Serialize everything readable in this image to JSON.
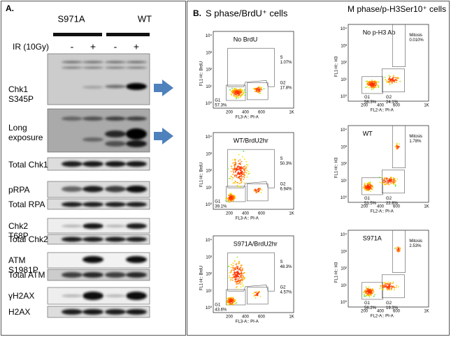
{
  "panel_a": {
    "label": "A.",
    "genotypes": [
      "S971A",
      "WT"
    ],
    "treatment": "IR (10Gy)",
    "lanes": [
      "-",
      "+",
      "-",
      "+"
    ],
    "blots": [
      "Chk1 S345P",
      "Long exposure",
      "Total Chk1",
      "pRPA",
      "Total RPA",
      "Chk2 T68P",
      "Total Chk2",
      "ATM S1981P",
      "Total ATM",
      "γH2AX",
      "H2AX"
    ]
  },
  "panel_b": {
    "label": "B.",
    "y_ticks": [
      "10⁰",
      "10¹",
      "10²",
      "10³",
      "10⁴"
    ],
    "x_ticks": [
      "200",
      "400",
      "600",
      "1K"
    ],
    "columns": [
      {
        "title": "S phase/BrdU⁺ cells",
        "y_axis": "FL1-H:: BrdU",
        "x_axis": "FL3-A:: PI-A",
        "plots": [
          {
            "label": "No BrdU",
            "gates": [
              {
                "name": "S",
                "value": "1.07%"
              },
              {
                "name": "G2",
                "value": "17.8%"
              },
              {
                "name": "G1",
                "value": "57.3%"
              }
            ]
          },
          {
            "label": "WT/BrdU2hr",
            "gates": [
              {
                "name": "S",
                "value": "50.3%"
              },
              {
                "name": "G2",
                "value": "6.94%"
              },
              {
                "name": "G1",
                "value": "39.1%"
              }
            ]
          },
          {
            "label": "S971A/BrdU2hr",
            "gates": [
              {
                "name": "S",
                "value": "48.3%"
              },
              {
                "name": "G2",
                "value": "4.57%"
              },
              {
                "name": "G1",
                "value": "43.6%"
              }
            ]
          }
        ]
      },
      {
        "title": "M phase/p-H3Ser10⁺ cells",
        "y_axis": "FL1-H:: H3",
        "x_axis": "FL2-A:: PI-A",
        "plots": [
          {
            "label": "No p-H3 Ab",
            "gates": [
              {
                "name": "Mitosis",
                "value": "0.010%"
              },
              {
                "name": "G1",
                "value": "56.3%"
              },
              {
                "name": "G2",
                "value": "24.1%"
              }
            ]
          },
          {
            "label": "WT",
            "gates": [
              {
                "name": "Mitosis",
                "value": "1.78%"
              },
              {
                "name": "G1",
                "value": "51.5%"
              },
              {
                "name": "G2",
                "value": "22.8%"
              }
            ]
          },
          {
            "label": "S971A",
            "gates": [
              {
                "name": "Mitosis",
                "value": "2.53%"
              },
              {
                "name": "G1",
                "value": "56.2%"
              },
              {
                "name": "G2",
                "value": "19.3%"
              }
            ]
          }
        ]
      }
    ]
  }
}
